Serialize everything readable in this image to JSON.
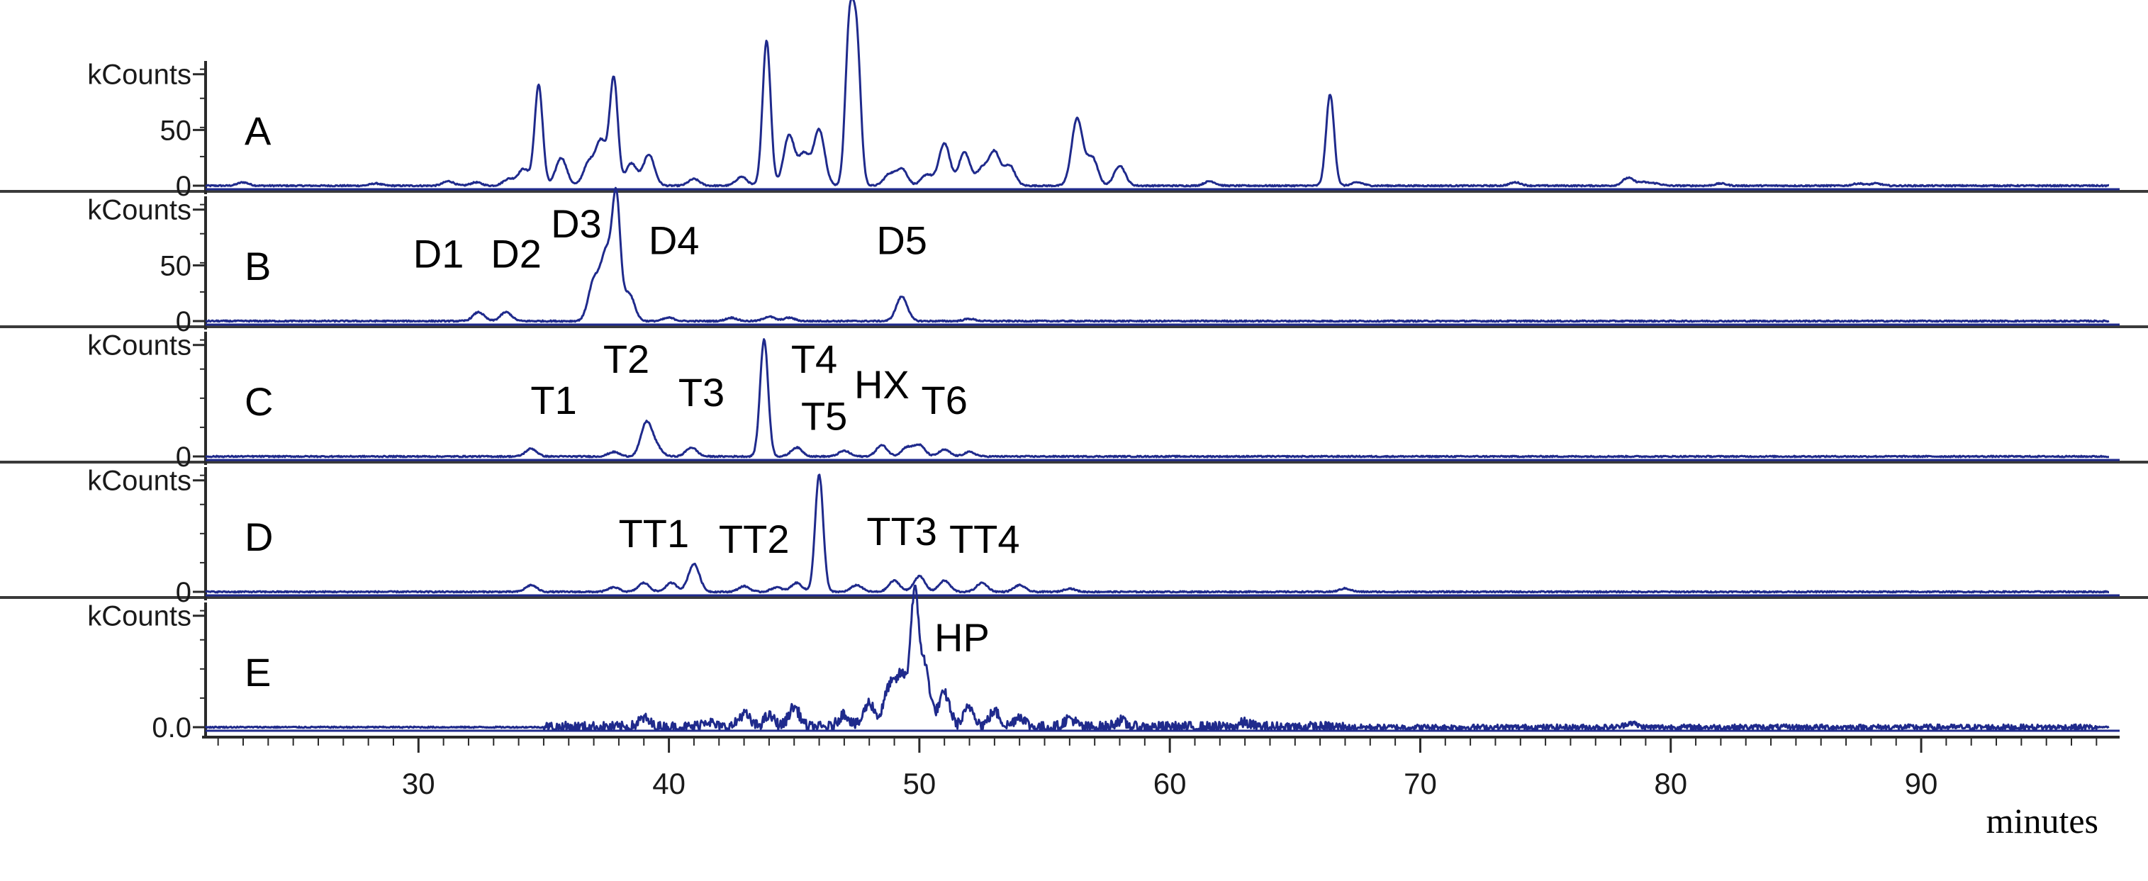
{
  "colors": {
    "trace": "#1f2a8c",
    "axis": "#2a2a2a",
    "separator": "#3a3a3a"
  },
  "chart_data": {
    "type": "line",
    "subtype": "stacked chromatogram panels",
    "xlabel": "minutes",
    "xlim": [
      21.5,
      97.5
    ],
    "x_ticks": [
      30,
      40,
      50,
      60,
      70,
      80,
      90
    ],
    "x_tick_labels": [
      "30",
      "40",
      "50",
      "60",
      "70",
      "80",
      "90"
    ],
    "ylabel_unit": "kCounts",
    "grid": false,
    "panels": [
      {
        "id": "A",
        "ylim": [
          0,
          110
        ],
        "y_tick_labels": [
          "kCounts",
          "50",
          "0"
        ],
        "y_tick_values": [
          100,
          50,
          0
        ],
        "peaks": [
          [
            23,
            3
          ],
          [
            28.3,
            2
          ],
          [
            31.2,
            4
          ],
          [
            32.3,
            3
          ],
          [
            33.6,
            6
          ],
          [
            34.2,
            15
          ],
          [
            34.8,
            90
          ],
          [
            35.7,
            25
          ],
          [
            36.8,
            20
          ],
          [
            37.3,
            40
          ],
          [
            37.8,
            95
          ],
          [
            38.5,
            20
          ],
          [
            39.2,
            28
          ],
          [
            41,
            6
          ],
          [
            42.9,
            8
          ],
          [
            43.9,
            130
          ],
          [
            44.8,
            45
          ],
          [
            45.4,
            28
          ],
          [
            46.0,
            50
          ],
          [
            47.2,
            135
          ],
          [
            47.5,
            125
          ],
          [
            48.8,
            10
          ],
          [
            49.3,
            15
          ],
          [
            50.3,
            10
          ],
          [
            51,
            38
          ],
          [
            51.8,
            30
          ],
          [
            52.5,
            15
          ],
          [
            53.0,
            30
          ],
          [
            53.6,
            18
          ],
          [
            56.3,
            60
          ],
          [
            56.9,
            25
          ],
          [
            58,
            18
          ],
          [
            61.6,
            4
          ],
          [
            66.4,
            82
          ],
          [
            67.5,
            3
          ],
          [
            73.8,
            3
          ],
          [
            78.3,
            7
          ],
          [
            78.9,
            3
          ],
          [
            79.4,
            2
          ],
          [
            82,
            2
          ],
          [
            87.5,
            2
          ],
          [
            88.2,
            2
          ]
        ]
      },
      {
        "id": "B",
        "ylim": [
          0,
          110
        ],
        "y_tick_labels": [
          "kCounts",
          "50",
          "0"
        ],
        "y_tick_values": [
          100,
          50,
          0
        ],
        "peaks": [
          [
            32.4,
            8
          ],
          [
            33.5,
            8
          ],
          [
            37.0,
            35
          ],
          [
            37.5,
            60
          ],
          [
            37.9,
            105
          ],
          [
            38.4,
            25
          ],
          [
            40.0,
            3
          ],
          [
            42.5,
            3
          ],
          [
            44.0,
            4
          ],
          [
            44.8,
            3
          ],
          [
            49.3,
            22
          ],
          [
            52,
            2
          ]
        ],
        "annotations": [
          {
            "text": "D1",
            "x": 30.8,
            "y": 48
          },
          {
            "text": "D2",
            "x": 33.9,
            "y": 48
          },
          {
            "text": "D3",
            "x": 36.3,
            "y": 75
          },
          {
            "text": "D4",
            "x": 40.2,
            "y": 60
          },
          {
            "text": "D5",
            "x": 49.3,
            "y": 60
          }
        ]
      },
      {
        "id": "C",
        "ylim": [
          0,
          110
        ],
        "y_tick_labels": [
          "kCounts",
          "0"
        ],
        "y_tick_values": [
          100,
          0
        ],
        "peaks": [
          [
            34.5,
            7
          ],
          [
            37.8,
            4
          ],
          [
            39.1,
            30
          ],
          [
            39.5,
            8
          ],
          [
            40.9,
            8
          ],
          [
            43.8,
            105
          ],
          [
            45.1,
            8
          ],
          [
            47.0,
            5
          ],
          [
            48.5,
            10
          ],
          [
            49.5,
            8
          ],
          [
            50.0,
            10
          ],
          [
            51.0,
            6
          ],
          [
            52.0,
            4
          ]
        ],
        "annotations": [
          {
            "text": "T1",
            "x": 35.4,
            "y": 38
          },
          {
            "text": "T2",
            "x": 38.3,
            "y": 75
          },
          {
            "text": "T3",
            "x": 41.3,
            "y": 45
          },
          {
            "text": "T4",
            "x": 45.8,
            "y": 75
          },
          {
            "text": "T5",
            "x": 46.2,
            "y": 24
          },
          {
            "text": "HX",
            "x": 48.5,
            "y": 52
          },
          {
            "text": "T6",
            "x": 51.0,
            "y": 38
          }
        ]
      },
      {
        "id": "D",
        "ylim": [
          0,
          110
        ],
        "y_tick_labels": [
          "kCounts",
          "0"
        ],
        "y_tick_values": [
          100,
          0
        ],
        "peaks": [
          [
            34.5,
            6
          ],
          [
            37.8,
            4
          ],
          [
            39.0,
            8
          ],
          [
            40.1,
            8
          ],
          [
            41.0,
            25
          ],
          [
            43.0,
            5
          ],
          [
            44.3,
            4
          ],
          [
            45.1,
            8
          ],
          [
            46.0,
            105
          ],
          [
            47.5,
            6
          ],
          [
            49.0,
            10
          ],
          [
            50.0,
            14
          ],
          [
            51.0,
            10
          ],
          [
            52.5,
            8
          ],
          [
            54.0,
            6
          ],
          [
            56.0,
            3
          ],
          [
            67.0,
            3
          ]
        ],
        "annotations": [
          {
            "text": "TT1",
            "x": 39.4,
            "y": 40
          },
          {
            "text": "TT2",
            "x": 43.4,
            "y": 35
          },
          {
            "text": "TT3",
            "x": 49.3,
            "y": 42
          },
          {
            "text": "TT4",
            "x": 52.6,
            "y": 35
          }
        ]
      },
      {
        "id": "E",
        "ylim": [
          0,
          110
        ],
        "y_tick_labels": [
          "kCounts",
          "0.0"
        ],
        "y_tick_values": [
          100,
          0
        ],
        "peaks": [
          [
            39.0,
            8
          ],
          [
            41.5,
            6
          ],
          [
            43.0,
            12
          ],
          [
            44.0,
            10
          ],
          [
            45.0,
            18
          ],
          [
            47.0,
            12
          ],
          [
            48.0,
            22
          ],
          [
            48.8,
            35
          ],
          [
            49.3,
            45
          ],
          [
            49.8,
            110
          ],
          [
            50.2,
            55
          ],
          [
            51.0,
            30
          ],
          [
            52.0,
            18
          ],
          [
            53.0,
            14
          ],
          [
            54.0,
            10
          ],
          [
            56.0,
            8
          ],
          [
            58.0,
            6
          ],
          [
            63.0,
            4
          ],
          [
            78.4,
            4
          ]
        ],
        "noise": [
          [
            35,
            67,
            5
          ],
          [
            67,
            97,
            2.5
          ]
        ],
        "annotations": [
          {
            "text": "HP",
            "x": 51.7,
            "y": 68
          }
        ]
      }
    ]
  }
}
